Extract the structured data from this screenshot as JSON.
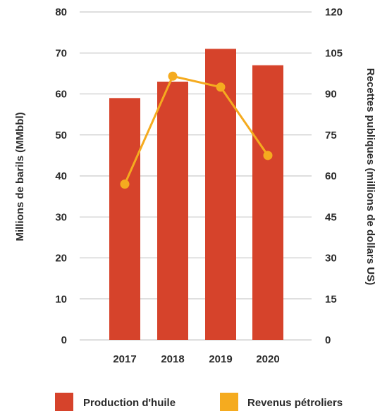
{
  "chart_data": {
    "type": "bar",
    "categories": [
      "2017",
      "2018",
      "2019",
      "2020"
    ],
    "series": [
      {
        "name": "Production d'huile",
        "type": "bar",
        "axis": "left",
        "color": "#d6432b",
        "values": [
          59,
          63,
          71,
          67
        ]
      },
      {
        "name": "Revenus pétroliers",
        "type": "line",
        "axis": "right",
        "color": "#f5ab1f",
        "values": [
          57,
          96.5,
          92.5,
          67.5
        ]
      }
    ],
    "ylabel": "Millions de barils (MMbbl)",
    "y2label": "Recettes publiques (millions de dollars US)",
    "ylim": [
      0,
      80
    ],
    "y2lim": [
      0,
      120
    ],
    "yticks": [
      "0",
      "10",
      "20",
      "30",
      "40",
      "50",
      "60",
      "70",
      "80"
    ],
    "y2ticks": [
      "0",
      "15",
      "30",
      "45",
      "60",
      "75",
      "90",
      "105",
      "120"
    ],
    "grid": true,
    "legend_position": "bottom"
  }
}
